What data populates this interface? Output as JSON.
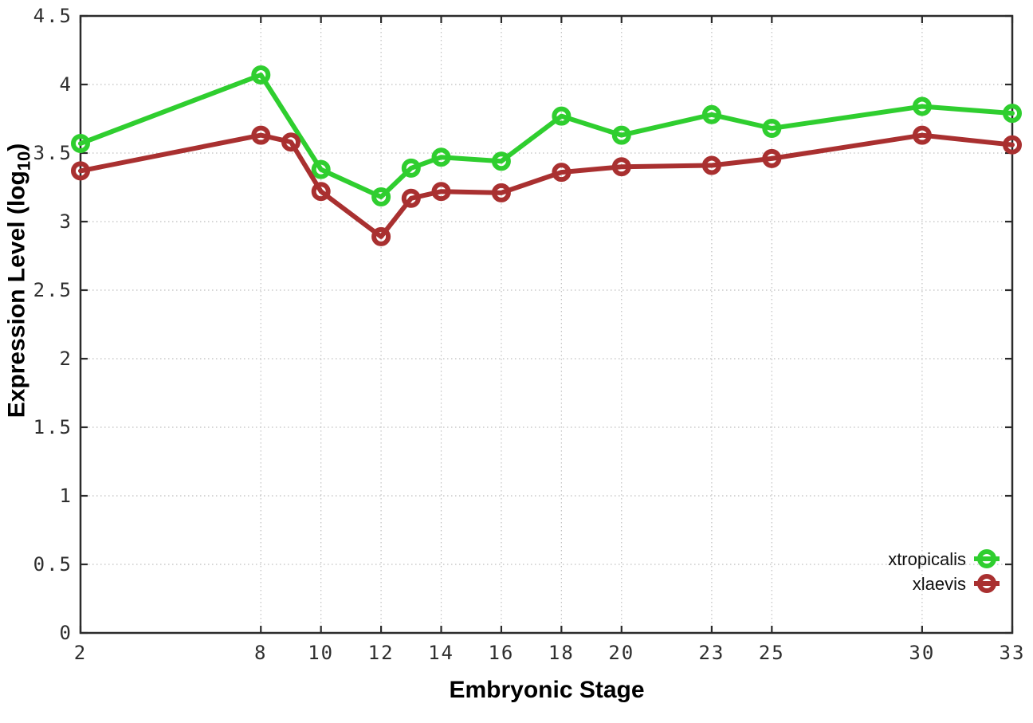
{
  "figure": {
    "xlabel": "Embryonic Stage",
    "ylabel_main": "Expression Level (log",
    "ylabel_sub": "10",
    "ylabel_end": ")"
  },
  "chart_data": {
    "type": "line",
    "title": "",
    "xlabel": "Embryonic Stage",
    "ylabel": "Expression Level (log10)",
    "xlim": [
      2,
      33
    ],
    "ylim": [
      0,
      4.5
    ],
    "grid": true,
    "grid_style": "dotted",
    "legend_position": "bottom-right",
    "x_ticks": [
      2,
      8,
      10,
      12,
      14,
      16,
      18,
      20,
      23,
      25,
      30,
      33
    ],
    "y_ticks": [
      0,
      0.5,
      1,
      1.5,
      2,
      2.5,
      3,
      3.5,
      4,
      4.5
    ],
    "series": [
      {
        "name": "xtropicalis",
        "color": "#2FCE2F",
        "marker": "open-circle",
        "x": [
          2,
          8,
          10,
          12,
          13,
          14,
          16,
          18,
          20,
          23,
          25,
          30,
          33
        ],
        "y": [
          3.57,
          4.07,
          3.38,
          3.18,
          3.39,
          3.47,
          3.44,
          3.77,
          3.63,
          3.78,
          3.68,
          3.84,
          3.79
        ]
      },
      {
        "name": "xlaevis",
        "color": "#A93030",
        "marker": "open-circle",
        "x": [
          2,
          8,
          9,
          10,
          12,
          13,
          14,
          16,
          18,
          20,
          23,
          25,
          30,
          33
        ],
        "y": [
          3.37,
          3.63,
          3.58,
          3.22,
          2.89,
          3.17,
          3.22,
          3.21,
          3.36,
          3.4,
          3.41,
          3.46,
          3.63,
          3.56
        ]
      }
    ]
  }
}
